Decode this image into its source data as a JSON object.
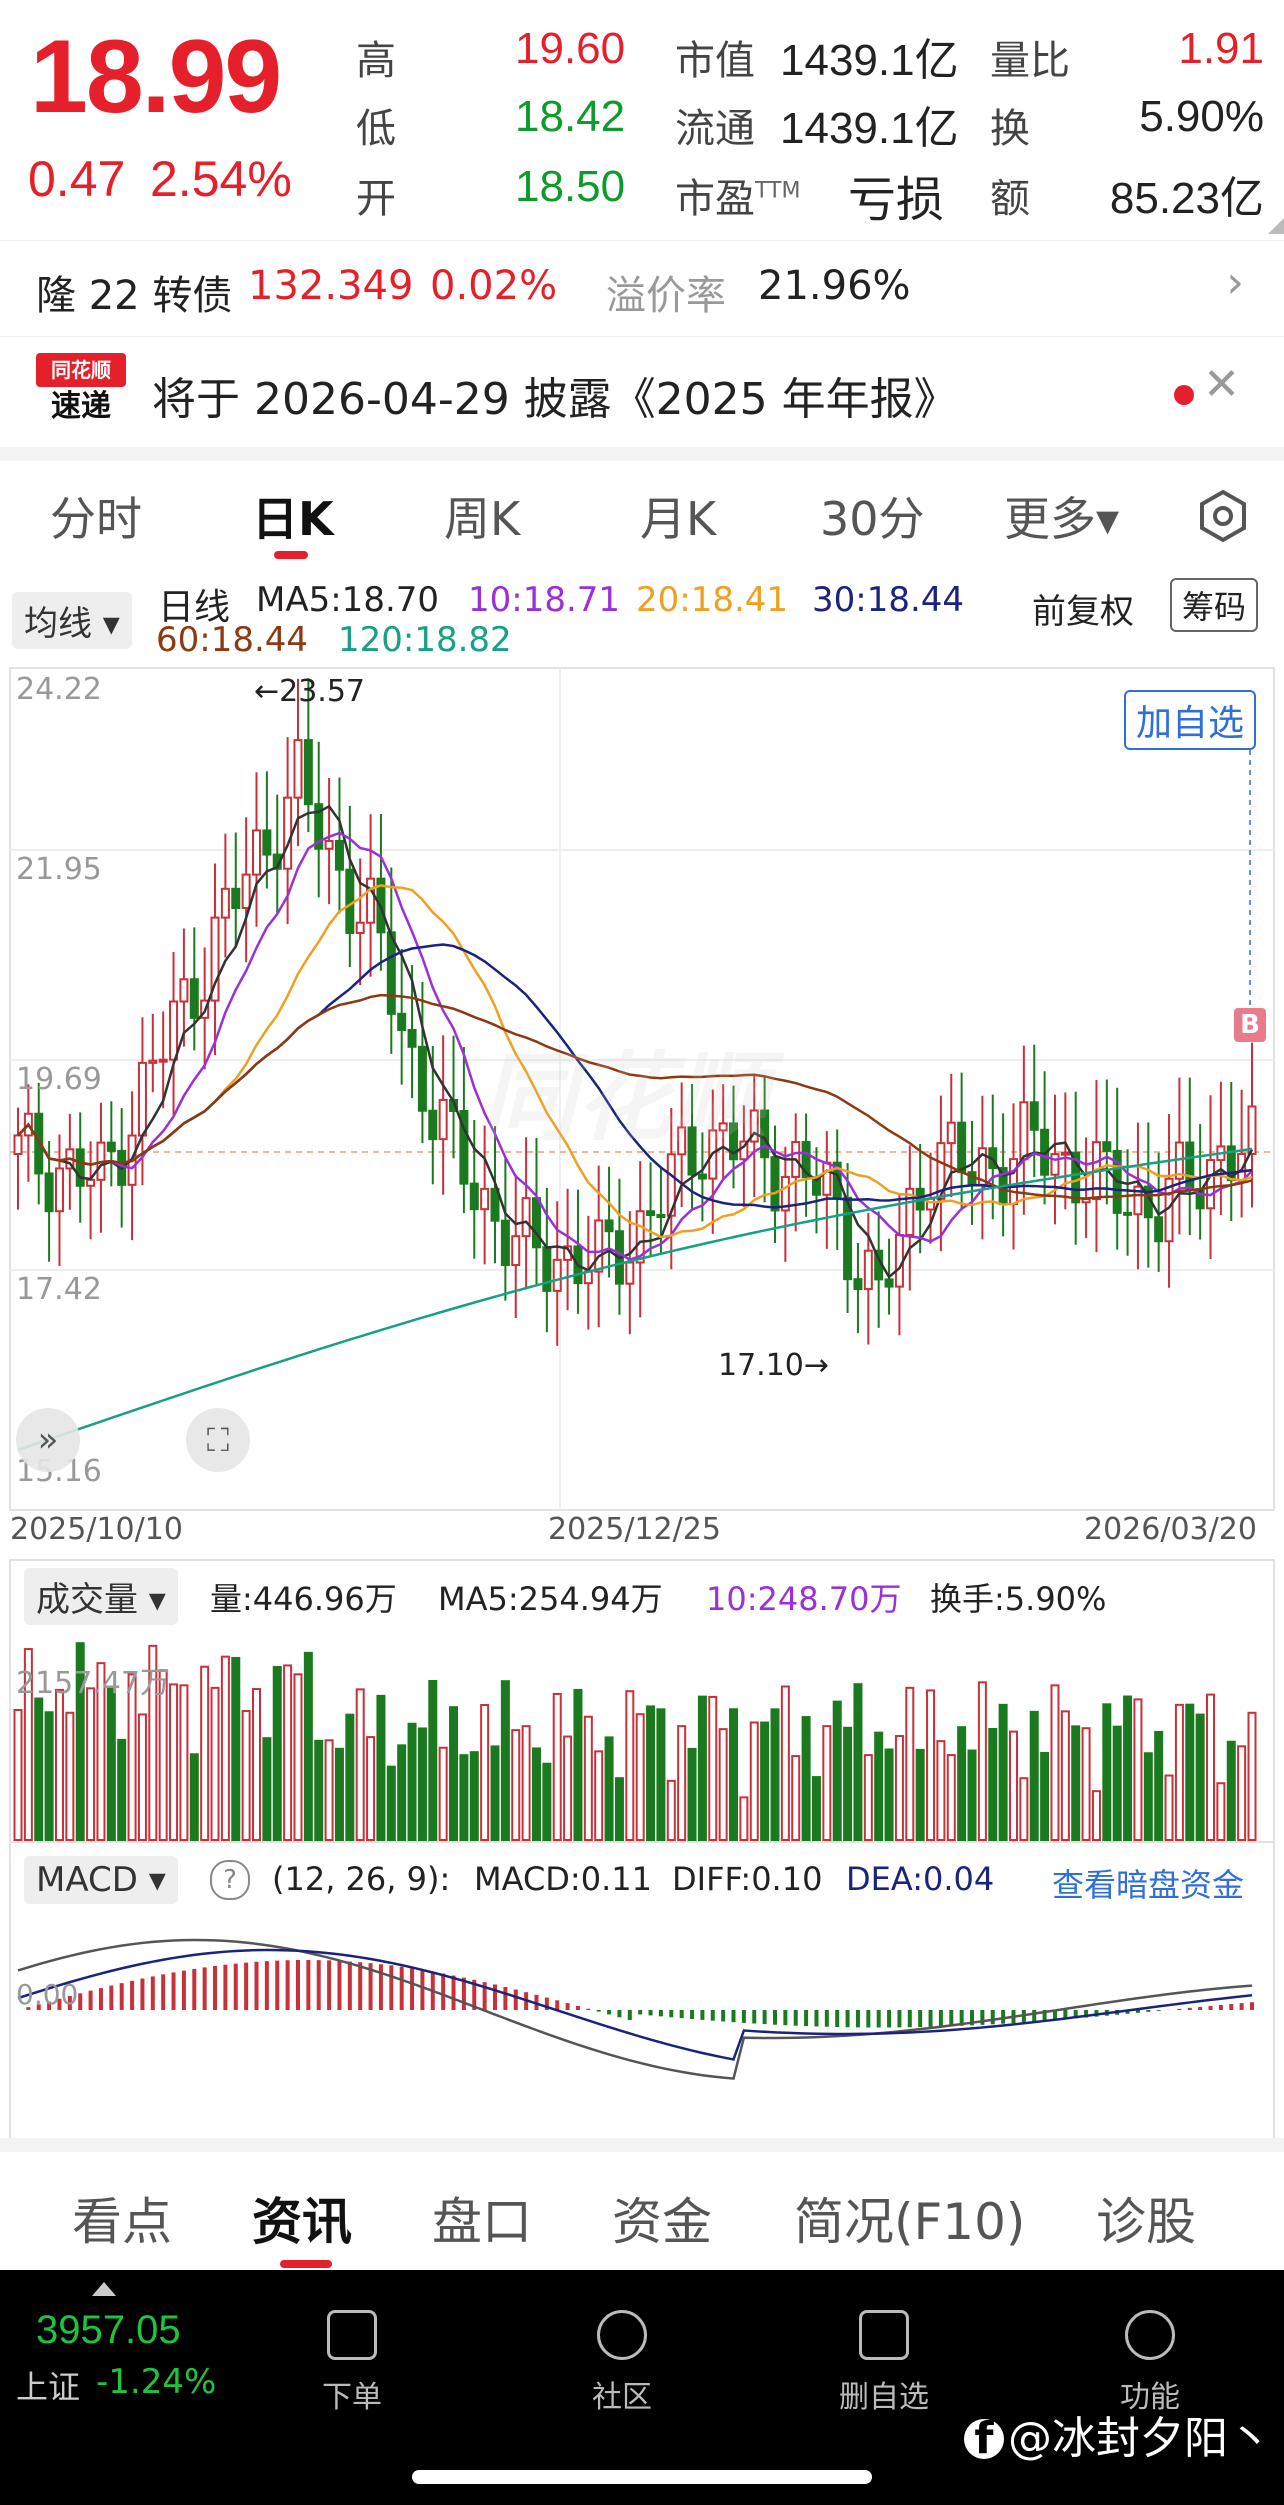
{
  "quote": {
    "price": "18.99",
    "change": "0.47",
    "change_pct": "2.54%",
    "fields": [
      {
        "label": "高",
        "value": "19.60",
        "color": "#e5202a"
      },
      {
        "label": "低",
        "value": "18.42",
        "color": "#0d9b2b"
      },
      {
        "label": "开",
        "value": "18.50",
        "color": "#0d9b2b"
      },
      {
        "label": "市值",
        "value": "1439.1亿"
      },
      {
        "label": "流通",
        "value": "1439.1亿"
      },
      {
        "label": "市盈",
        "sup": "TTM",
        "value": "亏损"
      },
      {
        "label": "量比",
        "value": "1.91",
        "color": "#e5202a"
      },
      {
        "label": "换",
        "value": "5.90%"
      },
      {
        "label": "额",
        "value": "85.23亿"
      }
    ]
  },
  "bond": {
    "name": "隆 22 转债",
    "price": "132.349",
    "pct": "0.02%",
    "premium_label": "溢价率",
    "premium": "21.96%"
  },
  "notice": {
    "logo_top": "同花顺",
    "logo_bottom": "速递",
    "text": "将于 2026-04-29 披露《2025 年年报》"
  },
  "period_tabs": [
    "分时",
    "日K",
    "周K",
    "月K",
    "30分",
    "更多▾"
  ],
  "kline": {
    "indicator_select": "均线",
    "label": "日线",
    "ma": [
      {
        "text": "MA5:18.70",
        "color": "#333333"
      },
      {
        "text": "10:18.71",
        "color": "#9b30d9"
      },
      {
        "text": "20:18.41",
        "color": "#f0a020"
      },
      {
        "text": "30:18.44",
        "color": "#1a237e"
      },
      {
        "text": "60:18.44",
        "color": "#8b3a12"
      },
      {
        "text": "120:18.82",
        "color": "#16a085"
      }
    ],
    "fq": "前复权",
    "chouma": "筹码",
    "add_watch": "加自选",
    "y_ticks": [
      "24.22",
      "21.95",
      "19.69",
      "17.42",
      "15.16"
    ],
    "max_label": "←23.57",
    "min_label": "17.10→",
    "dates": [
      "2025/10/10",
      "2025/12/25",
      "2026/03/20"
    ],
    "b_marker": "B",
    "watermark": "同花顺"
  },
  "volume": {
    "select": "成交量",
    "text": "量:446.96万",
    "ma5": "MA5:254.94万",
    "ma10": "10:248.70万",
    "turnover": "换手:5.90%",
    "tick": "2157.47万"
  },
  "macd": {
    "select": "MACD",
    "params": "(12, 26, 9):",
    "macd": "MACD:0.11",
    "diff": "DIFF:0.10",
    "dea": "DEA:0.04",
    "link": "查看暗盘资金",
    "tick": "0.00"
  },
  "bottom_tabs": [
    "看点",
    "资讯",
    "盘口",
    "资金",
    "简况(F10)",
    "诊股"
  ],
  "index": {
    "value": "3957.05",
    "name": "上证",
    "pct": "-1.24%"
  },
  "nav": [
    "下单",
    "社区",
    "删自选",
    "功能"
  ],
  "watermark_user": "@冰封夕阳丶",
  "colors": {
    "red": "#e5202a",
    "green": "#0d9b2b"
  }
}
